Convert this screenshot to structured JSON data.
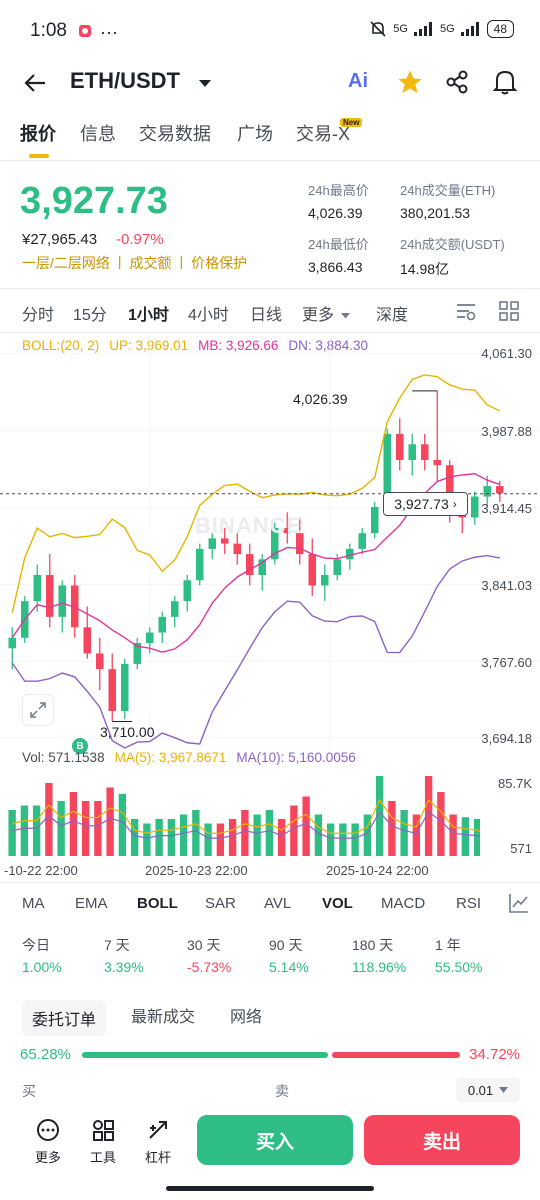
{
  "status": {
    "time": "1:08",
    "battery": "48",
    "signal1": "5G",
    "signal2": "5G"
  },
  "header": {
    "pair": "ETH/USDT",
    "ai_label": "Ai"
  },
  "tabs": [
    "报价",
    "信息",
    "交易数据",
    "广场",
    "交易-X"
  ],
  "tab_badge": "New",
  "price": {
    "last": "3,927.73",
    "cny": "¥27,965.43",
    "change": "-0.97%",
    "links": [
      "一层/二层网络",
      "成交额",
      "价格保护"
    ]
  },
  "stats": {
    "high_label": "24h最高价",
    "high": "4,026.39",
    "vol_label": "24h成交量(ETH)",
    "vol": "380,201.53",
    "low_label": "24h最低价",
    "low": "3,866.43",
    "turnover_label": "24h成交额(USDT)",
    "turnover": "14.98亿"
  },
  "timeframes": [
    "分时",
    "15分",
    "1小时",
    "4小时",
    "日线",
    "更多",
    "深度"
  ],
  "boll": {
    "label": "BOLL:(20, 2)",
    "up": "UP: 3,969.01",
    "mb": "MB: 3,926.66",
    "dn": "DN: 3,884.30"
  },
  "price_axis": [
    "4,061.30",
    "3,987.88",
    "3,914.45",
    "3,841.03",
    "3,767.60",
    "3,694.18"
  ],
  "chart_annotations": {
    "high": "4,026.39",
    "low": "3,710.00",
    "current": "3,927.73",
    "marker": "B",
    "watermark": "BINANCE"
  },
  "volume": {
    "label": "Vol: 571.1538",
    "ma5": "MA(5): 3,967.8671",
    "ma10": "MA(10): 5,160.0056",
    "axis_top": "85.7K",
    "axis_bottom": "571"
  },
  "time_axis": [
    "-10-22 22:00",
    "2025-10-23 22:00",
    "2025-10-24 22:00"
  ],
  "indicators": [
    "MA",
    "EMA",
    "BOLL",
    "SAR",
    "AVL",
    "VOL",
    "MACD",
    "RSI"
  ],
  "performance": [
    {
      "label": "今日",
      "value": "1.00%",
      "color": "#2ebd85"
    },
    {
      "label": "7 天",
      "value": "3.39%",
      "color": "#2ebd85"
    },
    {
      "label": "30 天",
      "value": "-5.73%",
      "color": "#f6465d"
    },
    {
      "label": "90 天",
      "value": "5.14%",
      "color": "#2ebd85"
    },
    {
      "label": "180 天",
      "value": "118.96%",
      "color": "#2ebd85"
    },
    {
      "label": "1 年",
      "value": "55.50%",
      "color": "#2ebd85"
    }
  ],
  "book_tabs": [
    "委托订单",
    "最新成交",
    "网络"
  ],
  "ratio": {
    "buy": "65.28%",
    "sell": "34.72%",
    "buy_fraction": 0.6528
  },
  "book_headers": {
    "buy": "买",
    "sell": "卖",
    "precision": "0.01"
  },
  "bottom": {
    "more": "更多",
    "tools": "工具",
    "leverage": "杠杆",
    "buy": "买入",
    "sell": "卖出"
  },
  "colors": {
    "green": "#2ebd85",
    "red": "#f6465d",
    "gold": "#f0b90b",
    "boll_up": "#e8b400",
    "boll_mb": "#e0369c",
    "boll_dn": "#8a63c8"
  },
  "chart_data": {
    "type": "candlestick",
    "y_range": [
      3694.18,
      4061.3
    ],
    "ohlc_estimate": [
      [
        3780,
        3800,
        3760,
        3790
      ],
      [
        3790,
        3830,
        3785,
        3825
      ],
      [
        3825,
        3860,
        3815,
        3850
      ],
      [
        3850,
        3870,
        3800,
        3810
      ],
      [
        3810,
        3845,
        3795,
        3840
      ],
      [
        3840,
        3850,
        3790,
        3800
      ],
      [
        3800,
        3820,
        3770,
        3775
      ],
      [
        3775,
        3790,
        3740,
        3760
      ],
      [
        3760,
        3775,
        3710,
        3720
      ],
      [
        3720,
        3770,
        3712,
        3765
      ],
      [
        3765,
        3790,
        3760,
        3785
      ],
      [
        3785,
        3800,
        3775,
        3795
      ],
      [
        3795,
        3815,
        3785,
        3810
      ],
      [
        3810,
        3830,
        3800,
        3825
      ],
      [
        3825,
        3850,
        3815,
        3845
      ],
      [
        3845,
        3880,
        3840,
        3875
      ],
      [
        3875,
        3890,
        3865,
        3885
      ],
      [
        3885,
        3895,
        3870,
        3880
      ],
      [
        3880,
        3890,
        3860,
        3870
      ],
      [
        3870,
        3880,
        3840,
        3850
      ],
      [
        3850,
        3870,
        3835,
        3865
      ],
      [
        3865,
        3900,
        3860,
        3895
      ],
      [
        3895,
        3910,
        3880,
        3890
      ],
      [
        3890,
        3905,
        3860,
        3870
      ],
      [
        3870,
        3885,
        3830,
        3840
      ],
      [
        3840,
        3860,
        3825,
        3850
      ],
      [
        3850,
        3870,
        3845,
        3865
      ],
      [
        3865,
        3880,
        3855,
        3875
      ],
      [
        3875,
        3895,
        3870,
        3890
      ],
      [
        3890,
        3920,
        3885,
        3915
      ],
      [
        3915,
        3990,
        3910,
        3985
      ],
      [
        3985,
        4000,
        3950,
        3960
      ],
      [
        3960,
        3985,
        3945,
        3975
      ],
      [
        3975,
        3985,
        3950,
        3960
      ],
      [
        3960,
        4026,
        3940,
        3955
      ],
      [
        3955,
        3960,
        3900,
        3910
      ],
      [
        3910,
        3925,
        3890,
        3905
      ],
      [
        3905,
        3930,
        3898,
        3925
      ],
      [
        3925,
        3945,
        3915,
        3935
      ],
      [
        3935,
        3940,
        3920,
        3928
      ]
    ]
  }
}
